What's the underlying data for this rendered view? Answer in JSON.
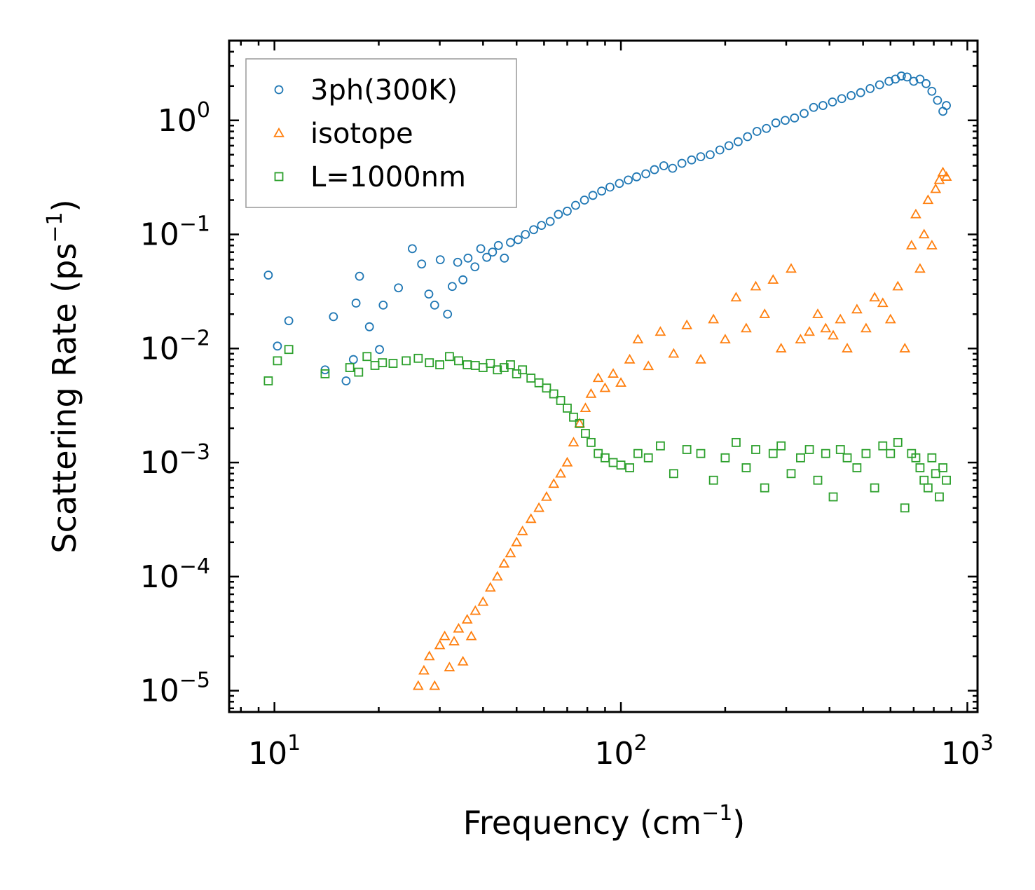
{
  "chart_data": {
    "type": "scatter",
    "title": "",
    "xlabel": "Frequency (cm",
    "xlabel_exp": "−1",
    "xlabel_tail": ")",
    "ylabel": "Scattering Rate (ps",
    "ylabel_exp": "−1",
    "ylabel_tail": ")",
    "xscale": "log",
    "yscale": "log",
    "xlim": [
      7.4,
      1070
    ],
    "ylim": [
      6.5e-06,
      5.0
    ],
    "grid": false,
    "legend_position": "top-left",
    "x_ticks": [
      {
        "value": 10,
        "base": "10",
        "exp": "1"
      },
      {
        "value": 100,
        "base": "10",
        "exp": "2"
      },
      {
        "value": 1000,
        "base": "10",
        "exp": "3"
      }
    ],
    "y_ticks": [
      {
        "value": 1,
        "base": "10",
        "exp": "0"
      },
      {
        "value": 0.1,
        "base": "10",
        "exp": "−1"
      },
      {
        "value": 0.01,
        "base": "10",
        "exp": "−2"
      },
      {
        "value": 0.001,
        "base": "10",
        "exp": "−3"
      },
      {
        "value": 0.0001,
        "base": "10",
        "exp": "−4"
      },
      {
        "value": 1e-05,
        "base": "10",
        "exp": "−5"
      }
    ],
    "series": [
      {
        "name": "3ph(300K)",
        "marker": "circle",
        "color": "#1f77b4",
        "x": [
          9.6,
          10.2,
          11.0,
          14.0,
          14.8,
          16.1,
          16.9,
          17.2,
          17.6,
          18.8,
          20.1,
          20.6,
          22.8,
          25.0,
          26.6,
          27.9,
          29.0,
          30.1,
          31.6,
          32.6,
          33.8,
          35.0,
          36.2,
          37.9,
          39.4,
          41.0,
          42.6,
          44.3,
          46.1,
          48.0,
          50.5,
          53.0,
          56.0,
          59.0,
          62.5,
          66.0,
          70.0,
          74.0,
          78.5,
          83.0,
          88.0,
          93.0,
          99.0,
          105.0,
          111.0,
          118.0,
          125.0,
          133.0,
          141.0,
          150.0,
          160.0,
          170.0,
          181.0,
          193.0,
          205.0,
          218.0,
          232.0,
          247.0,
          263.0,
          280.0,
          298.0,
          317.0,
          338.0,
          360.0,
          383.0,
          408.0,
          434.0,
          462.0,
          492.0,
          524.0,
          558.0,
          594.0,
          620.0,
          645.0,
          670.0,
          700.0,
          730.0,
          760.0,
          790.0,
          820.0,
          850.0,
          870.0
        ],
        "y": [
          0.044,
          0.0105,
          0.0175,
          0.0065,
          0.019,
          0.0052,
          0.008,
          0.025,
          0.043,
          0.0155,
          0.0098,
          0.024,
          0.034,
          0.075,
          0.055,
          0.03,
          0.024,
          0.06,
          0.02,
          0.035,
          0.057,
          0.04,
          0.062,
          0.052,
          0.075,
          0.063,
          0.07,
          0.08,
          0.062,
          0.085,
          0.09,
          0.1,
          0.11,
          0.12,
          0.13,
          0.15,
          0.16,
          0.18,
          0.2,
          0.22,
          0.24,
          0.26,
          0.28,
          0.3,
          0.32,
          0.34,
          0.37,
          0.4,
          0.38,
          0.42,
          0.45,
          0.48,
          0.5,
          0.55,
          0.6,
          0.65,
          0.72,
          0.8,
          0.85,
          0.95,
          1.0,
          1.05,
          1.15,
          1.3,
          1.35,
          1.45,
          1.55,
          1.65,
          1.75,
          1.9,
          2.05,
          2.2,
          2.3,
          2.45,
          2.4,
          2.2,
          2.3,
          2.1,
          1.8,
          1.5,
          1.2,
          1.35
        ]
      },
      {
        "name": "isotope",
        "marker": "triangle",
        "color": "#ff7f0e",
        "x": [
          26.0,
          27.0,
          28.0,
          29.0,
          30.0,
          31.0,
          32.0,
          33.0,
          34.0,
          35.0,
          36.0,
          37.0,
          38.0,
          40.0,
          42.0,
          44.0,
          46.0,
          48.0,
          50.0,
          52.0,
          55.0,
          58.0,
          61.0,
          64.0,
          67.0,
          70.0,
          73.0,
          76.0,
          79.0,
          82.0,
          86.0,
          90.0,
          95.0,
          100.0,
          106.0,
          112.0,
          120.0,
          130.0,
          142.0,
          155.0,
          170.0,
          185.0,
          200.0,
          215.0,
          230.0,
          245.0,
          260.0,
          275.0,
          290.0,
          310.0,
          330.0,
          350.0,
          370.0,
          390.0,
          410.0,
          430.0,
          450.0,
          480.0,
          510.0,
          540.0,
          570.0,
          600.0,
          630.0,
          660.0,
          690.0,
          710.0,
          730.0,
          750.0,
          770.0,
          790.0,
          810.0,
          830.0,
          850.0,
          870.0
        ],
        "y": [
          1.1e-05,
          1.5e-05,
          2e-05,
          1.1e-05,
          2.5e-05,
          3e-05,
          1.6e-05,
          2.7e-05,
          3.5e-05,
          1.8e-05,
          4.2e-05,
          3e-05,
          5e-05,
          6e-05,
          8e-05,
          0.0001,
          0.00013,
          0.00016,
          0.0002,
          0.00025,
          0.00032,
          0.0004,
          0.0005,
          0.00065,
          0.0008,
          0.001,
          0.0015,
          0.0022,
          0.003,
          0.004,
          0.0055,
          0.0045,
          0.006,
          0.005,
          0.008,
          0.012,
          0.007,
          0.014,
          0.009,
          0.016,
          0.008,
          0.018,
          0.012,
          0.028,
          0.015,
          0.035,
          0.02,
          0.04,
          0.01,
          0.05,
          0.012,
          0.014,
          0.02,
          0.015,
          0.013,
          0.018,
          0.01,
          0.022,
          0.015,
          0.028,
          0.025,
          0.018,
          0.035,
          0.01,
          0.08,
          0.15,
          0.05,
          0.1,
          0.2,
          0.08,
          0.25,
          0.3,
          0.35,
          0.32
        ]
      },
      {
        "name": "L=1000nm",
        "marker": "square",
        "color": "#2ca02c",
        "x": [
          9.6,
          10.2,
          11.0,
          14.0,
          16.5,
          17.5,
          18.5,
          19.5,
          20.5,
          22.0,
          24.0,
          26.0,
          28.0,
          30.0,
          32.0,
          34.0,
          36.0,
          38.0,
          40.0,
          42.0,
          44.0,
          46.0,
          48.0,
          50.0,
          52.0,
          55.0,
          58.0,
          61.0,
          64.0,
          67.0,
          70.0,
          73.0,
          76.0,
          79.0,
          82.0,
          86.0,
          90.0,
          95.0,
          100.0,
          106.0,
          112.0,
          120.0,
          130.0,
          142.0,
          155.0,
          170.0,
          185.0,
          200.0,
          215.0,
          230.0,
          245.0,
          260.0,
          275.0,
          290.0,
          310.0,
          330.0,
          350.0,
          370.0,
          390.0,
          410.0,
          430.0,
          450.0,
          480.0,
          510.0,
          540.0,
          570.0,
          600.0,
          630.0,
          660.0,
          690.0,
          710.0,
          730.0,
          750.0,
          770.0,
          790.0,
          810.0,
          830.0,
          850.0,
          870.0
        ],
        "y": [
          0.0052,
          0.0078,
          0.0098,
          0.006,
          0.0068,
          0.0062,
          0.0085,
          0.0071,
          0.0075,
          0.0074,
          0.0078,
          0.0082,
          0.0075,
          0.0072,
          0.0085,
          0.0078,
          0.0072,
          0.0071,
          0.0068,
          0.0074,
          0.0065,
          0.0068,
          0.0072,
          0.006,
          0.0065,
          0.0055,
          0.005,
          0.0045,
          0.004,
          0.0035,
          0.003,
          0.0025,
          0.0022,
          0.0018,
          0.0015,
          0.0012,
          0.0011,
          0.001,
          0.00095,
          0.0009,
          0.0012,
          0.0011,
          0.0014,
          0.0008,
          0.0013,
          0.0012,
          0.0007,
          0.0011,
          0.0015,
          0.0009,
          0.0013,
          0.0006,
          0.0012,
          0.0014,
          0.0008,
          0.0011,
          0.0013,
          0.0007,
          0.0012,
          0.0005,
          0.0013,
          0.0011,
          0.0009,
          0.0012,
          0.0006,
          0.0014,
          0.0012,
          0.0015,
          0.0004,
          0.0012,
          0.0011,
          0.0009,
          0.0007,
          0.0006,
          0.0011,
          0.0008,
          0.0005,
          0.0009,
          0.0007
        ]
      }
    ]
  }
}
